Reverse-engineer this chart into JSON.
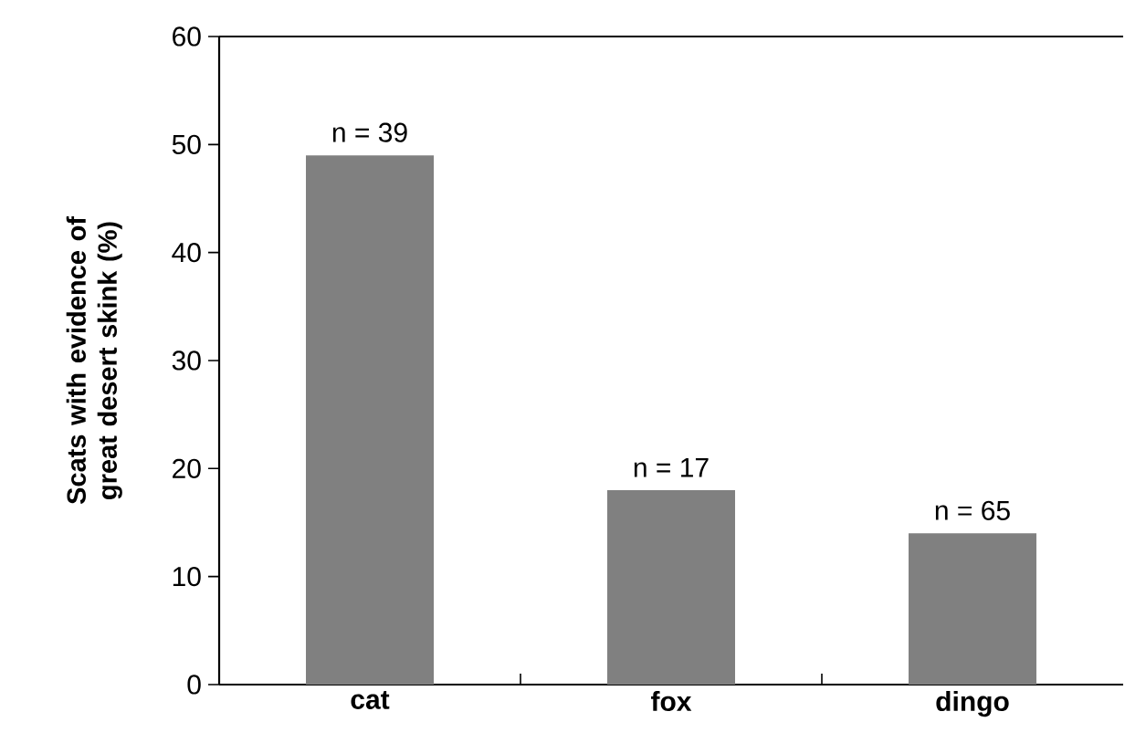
{
  "chart_data": {
    "type": "bar",
    "ylabel": "Scats with evidence of great desert skink  (%)",
    "categories": [
      "cat",
      "fox",
      "dingo"
    ],
    "values": [
      49,
      18,
      14
    ],
    "color": "#808080",
    "ylim": [
      0,
      60
    ],
    "yticks": [
      0,
      10,
      20,
      30,
      40,
      50,
      60
    ],
    "grid": false,
    "annotations": [
      {
        "text": "n = 39",
        "x": "cat",
        "y": 49
      },
      {
        "text": "n = 17",
        "x": "fox",
        "y": 18
      },
      {
        "text": "n = 65",
        "x": "dingo",
        "y": 14
      }
    ]
  }
}
